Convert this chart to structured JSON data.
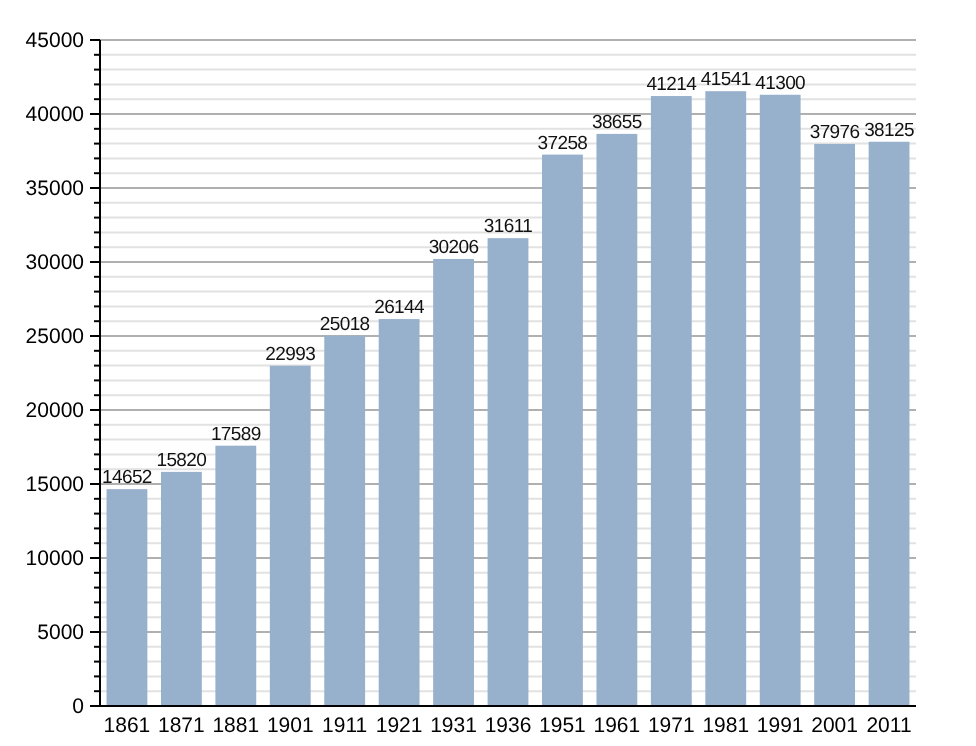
{
  "chart_data": {
    "type": "bar",
    "categories": [
      "1861",
      "1871",
      "1881",
      "1901",
      "1911",
      "1921",
      "1931",
      "1936",
      "1951",
      "1961",
      "1971",
      "1981",
      "1991",
      "2001",
      "2011"
    ],
    "values": [
      14652,
      15820,
      17589,
      22993,
      25018,
      26144,
      30206,
      31611,
      37258,
      38655,
      41214,
      41541,
      41300,
      37976,
      38125
    ],
    "color": "#97b0cc",
    "ylim": [
      0,
      45000
    ],
    "yticks": [
      0,
      {
        "value": 1000,
        "label": null
      },
      {
        "value": 2000,
        "label": null
      },
      {
        "value": 3000,
        "label": null
      },
      {
        "value": 4000,
        "label": null
      },
      5000,
      {
        "value": 6000,
        "label": null
      },
      {
        "value": 7000,
        "label": null
      },
      {
        "value": 8000,
        "label": null
      },
      {
        "value": 9000,
        "label": null
      },
      10000,
      {
        "value": 11000,
        "label": null
      },
      {
        "value": 12000,
        "label": null
      },
      {
        "value": 13000,
        "label": null
      },
      {
        "value": 14000,
        "label": null
      },
      15000,
      {
        "value": 16000,
        "label": null
      },
      {
        "value": 17000,
        "label": null
      },
      {
        "value": 18000,
        "label": null
      },
      {
        "value": 19000,
        "label": null
      },
      20000,
      {
        "value": 21000,
        "label": null
      },
      {
        "value": 22000,
        "label": null
      },
      {
        "value": 23000,
        "label": null
      },
      {
        "value": 24000,
        "label": null
      },
      25000,
      {
        "value": 26000,
        "label": null
      },
      {
        "value": 27000,
        "label": null
      },
      {
        "value": 28000,
        "label": null
      },
      {
        "value": 29000,
        "label": null
      },
      30000,
      {
        "value": 31000,
        "label": null
      },
      {
        "value": 32000,
        "label": null
      },
      {
        "value": 33000,
        "label": null
      },
      {
        "value": 34000,
        "label": null
      },
      35000,
      {
        "value": 36000,
        "label": null
      },
      {
        "value": 37000,
        "label": null
      },
      {
        "value": 38000,
        "label": null
      },
      {
        "value": 39000,
        "label": null
      },
      40000,
      {
        "value": 41000,
        "label": null
      },
      {
        "value": 42000,
        "label": null
      },
      {
        "value": 43000,
        "label": null
      },
      {
        "value": 44000,
        "label": null
      },
      45000
    ],
    "grid": true,
    "data_labels": true
  }
}
